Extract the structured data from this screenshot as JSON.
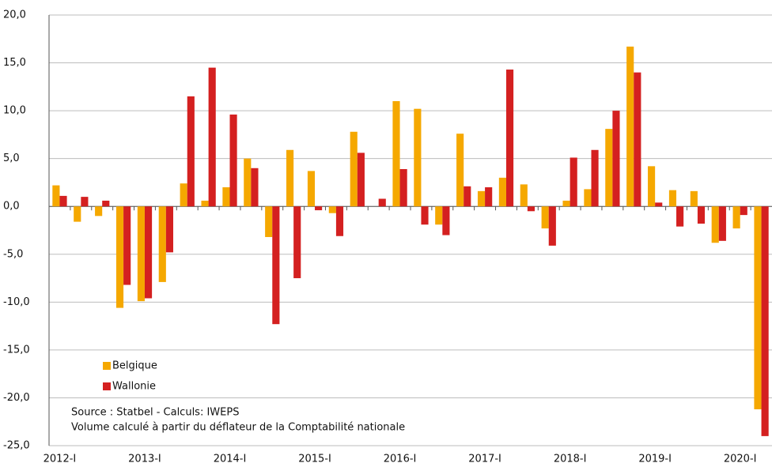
{
  "chart_data": {
    "type": "bar",
    "categories": [
      "2012-I",
      null,
      null,
      null,
      "2013-I",
      null,
      null,
      null,
      "2014-I",
      null,
      null,
      null,
      "2015-I",
      null,
      null,
      null,
      "2016-I",
      null,
      null,
      null,
      "2017-I",
      null,
      null,
      null,
      "2018-I",
      null,
      null,
      null,
      "2019-I",
      null,
      null,
      null,
      "2020-I",
      null
    ],
    "series": [
      {
        "name": "Belgique",
        "color": "#f5a800",
        "values": [
          2.2,
          -1.6,
          -1.0,
          -10.6,
          -9.9,
          -7.9,
          2.4,
          0.6,
          2.0,
          5.0,
          -3.2,
          5.9,
          3.7,
          -0.7,
          7.8,
          0.0,
          11.0,
          10.2,
          -1.9,
          7.6,
          1.6,
          3.0,
          2.3,
          -2.3,
          0.6,
          1.8,
          8.1,
          16.7,
          4.2,
          1.7,
          1.6,
          -3.8,
          -2.3,
          -21.2
        ]
      },
      {
        "name": "Wallonie",
        "color": "#d42020",
        "values": [
          1.1,
          1.0,
          0.6,
          -8.2,
          -9.6,
          -4.8,
          11.5,
          14.5,
          9.6,
          4.0,
          -12.3,
          -7.5,
          -0.4,
          -3.1,
          5.6,
          0.8,
          3.9,
          -1.9,
          -3.0,
          2.1,
          2.0,
          14.3,
          -0.5,
          -4.1,
          5.1,
          5.9,
          10.0,
          14.0,
          0.4,
          -2.1,
          -1.8,
          -3.6,
          -0.9,
          -24.0
        ]
      }
    ],
    "ylim": [
      -25,
      20
    ],
    "yticks": [
      {
        "value": -25,
        "label": "-25,0"
      },
      {
        "value": -20,
        "label": "-20,0"
      },
      {
        "value": -15,
        "label": "-15,0"
      },
      {
        "value": -10,
        "label": "-10,0"
      },
      {
        "value": -5,
        "label": "-5,0"
      },
      {
        "value": 0,
        "label": "0,0"
      },
      {
        "value": 5,
        "label": "5,0"
      },
      {
        "value": 10,
        "label": "10,0"
      },
      {
        "value": 15,
        "label": "15,0"
      },
      {
        "value": 20,
        "label": "20,0"
      }
    ],
    "grid": true,
    "legend": "lower-left",
    "annotations": [
      "Source : Statbel - Calculs: IWEPS",
      "Volume calculé à partir du déflateur de la Comptabilité nationale"
    ]
  }
}
